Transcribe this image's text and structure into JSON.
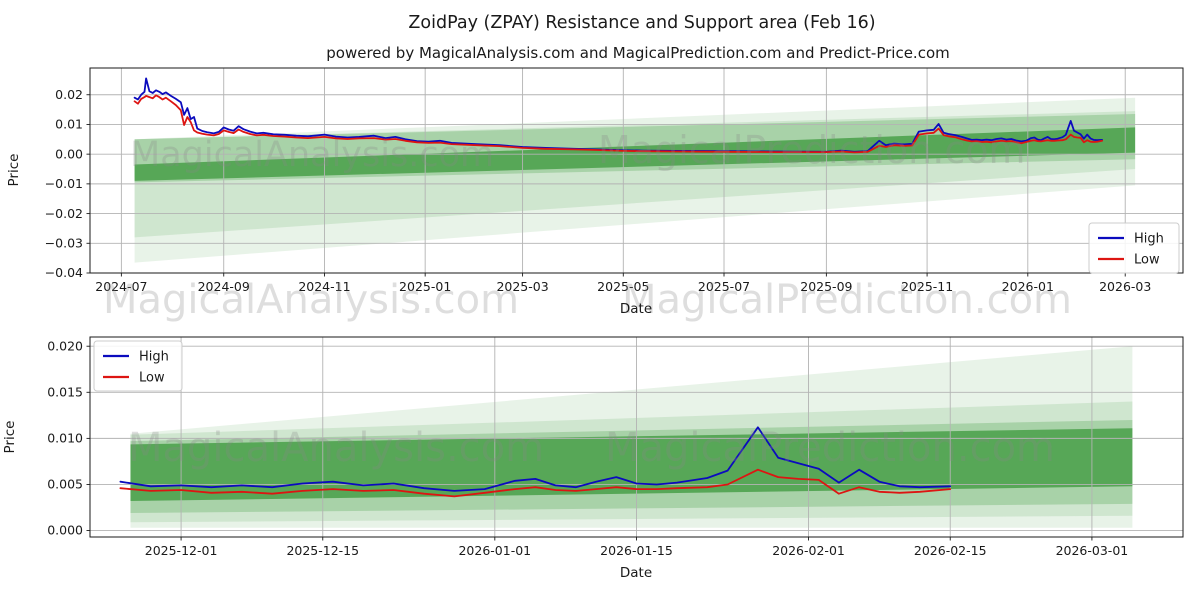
{
  "figure": {
    "title": "ZoidPay (ZPAY) Resistance and Support area (Feb 16)",
    "subtitle": "powered by MagicalAnalysis.com and MagicalPrediction.com and Predict-Price.com",
    "colors": {
      "high_line": "#0b0bbe",
      "low_line": "#dd1512",
      "band_green": "#228b22",
      "grid": "#b3b3b3",
      "spine": "#1a1a1a",
      "watermark": "#8a8a8a"
    }
  },
  "watermarks": [
    {
      "text": "MagicalAnalysis.com",
      "region": "top-chart-left"
    },
    {
      "text": "MagicalPrediction.com",
      "region": "top-chart-right"
    },
    {
      "text": "MagicalAnalysis.com",
      "region": "between-charts-left"
    },
    {
      "text": "MagicalPrediction.com",
      "region": "between-charts-right"
    },
    {
      "text": "MagicalAnalysis.com",
      "region": "bottom-chart-left"
    },
    {
      "text": "MagicalPrediction.com",
      "region": "bottom-chart-right"
    }
  ],
  "chart_data": [
    {
      "type": "line",
      "name": "full-history",
      "xlabel": "Date",
      "ylabel": "Price",
      "xlim": [
        "2024-06-12",
        "2026-04-05"
      ],
      "ylim": [
        -0.04,
        0.029
      ],
      "grid": true,
      "legend": {
        "position": "lower right",
        "entries": [
          {
            "label": "High",
            "color_key": "high_line"
          },
          {
            "label": "Low",
            "color_key": "low_line"
          }
        ]
      },
      "x_ticks": [
        {
          "label": "2024-07",
          "date": "2024-07-01"
        },
        {
          "label": "2024-09",
          "date": "2024-09-01"
        },
        {
          "label": "2024-11",
          "date": "2024-11-01"
        },
        {
          "label": "2025-01",
          "date": "2025-01-01"
        },
        {
          "label": "2025-03",
          "date": "2025-03-01"
        },
        {
          "label": "2025-05",
          "date": "2025-05-01"
        },
        {
          "label": "2025-07",
          "date": "2025-07-01"
        },
        {
          "label": "2025-09",
          "date": "2025-09-01"
        },
        {
          "label": "2025-11",
          "date": "2025-11-01"
        },
        {
          "label": "2026-01",
          "date": "2026-01-01"
        },
        {
          "label": "2026-03",
          "date": "2026-03-01"
        }
      ],
      "y_ticks": [
        {
          "label": "0.02",
          "value": 0.02
        },
        {
          "label": "0.01",
          "value": 0.01
        },
        {
          "label": "0.00",
          "value": 0.0
        },
        {
          "label": "−0.01",
          "value": -0.01
        },
        {
          "label": "−0.02",
          "value": -0.02
        },
        {
          "label": "−0.03",
          "value": -0.03
        },
        {
          "label": "−0.04",
          "value": -0.04
        }
      ],
      "bands": [
        {
          "start": "2024-07-09",
          "end": "2026-03-07",
          "top": [
            0.005,
            0.019
          ],
          "bottom": [
            -0.0365,
            -0.0105
          ],
          "opacity": 0.1
        },
        {
          "start": "2024-07-09",
          "end": "2026-03-07",
          "top": [
            0.005,
            0.0145
          ],
          "bottom": [
            -0.028,
            -0.005
          ],
          "opacity": 0.12
        },
        {
          "start": "2024-07-09",
          "end": "2026-03-07",
          "top": [
            0.005,
            0.0135
          ],
          "bottom": [
            -0.0095,
            -0.0017
          ],
          "opacity": 0.22
        },
        {
          "start": "2024-07-09",
          "end": "2026-03-07",
          "top": [
            -0.0035,
            0.009
          ],
          "bottom": [
            -0.009,
            0.0005
          ],
          "opacity": 0.6
        }
      ],
      "series_labels": [
        "High",
        "Low"
      ],
      "points": [
        [
          "2024-07-09",
          0.019,
          0.0178
        ],
        [
          "2024-07-11",
          0.0184,
          0.017
        ],
        [
          "2024-07-13",
          0.02,
          0.0186
        ],
        [
          "2024-07-15",
          0.021,
          0.0192
        ],
        [
          "2024-07-16",
          0.0255,
          0.0196
        ],
        [
          "2024-07-18",
          0.0212,
          0.0192
        ],
        [
          "2024-07-20",
          0.0206,
          0.0188
        ],
        [
          "2024-07-22",
          0.0215,
          0.0198
        ],
        [
          "2024-07-24",
          0.021,
          0.0192
        ],
        [
          "2024-07-26",
          0.0202,
          0.0184
        ],
        [
          "2024-07-28",
          0.0208,
          0.019
        ],
        [
          "2024-07-31",
          0.0196,
          0.0178
        ],
        [
          "2024-08-03",
          0.0186,
          0.0165
        ],
        [
          "2024-08-06",
          0.0175,
          0.0148
        ],
        [
          "2024-08-08",
          0.0132,
          0.0098
        ],
        [
          "2024-08-10",
          0.0155,
          0.0125
        ],
        [
          "2024-08-12",
          0.0118,
          0.0108
        ],
        [
          "2024-08-14",
          0.0125,
          0.008
        ],
        [
          "2024-08-16",
          0.0086,
          0.0073
        ],
        [
          "2024-08-19",
          0.0078,
          0.0069
        ],
        [
          "2024-08-22",
          0.0074,
          0.0066
        ],
        [
          "2024-08-26",
          0.007,
          0.0063
        ],
        [
          "2024-08-29",
          0.0075,
          0.0068
        ],
        [
          "2024-09-01",
          0.009,
          0.008
        ],
        [
          "2024-09-04",
          0.0083,
          0.0075
        ],
        [
          "2024-09-07",
          0.0079,
          0.0071
        ],
        [
          "2024-09-10",
          0.0094,
          0.0083
        ],
        [
          "2024-09-13",
          0.0084,
          0.0075
        ],
        [
          "2024-09-17",
          0.0076,
          0.0068
        ],
        [
          "2024-09-21",
          0.007,
          0.0063
        ],
        [
          "2024-09-25",
          0.0072,
          0.0065
        ],
        [
          "2024-10-01",
          0.0067,
          0.0061
        ],
        [
          "2024-10-08",
          0.0065,
          0.0059
        ],
        [
          "2024-10-15",
          0.0062,
          0.0056
        ],
        [
          "2024-10-22",
          0.006,
          0.0054
        ],
        [
          "2024-11-01",
          0.0066,
          0.0058
        ],
        [
          "2024-11-08",
          0.0059,
          0.0053
        ],
        [
          "2024-11-15",
          0.0056,
          0.0051
        ],
        [
          "2024-11-22",
          0.0058,
          0.0053
        ],
        [
          "2024-12-01",
          0.0062,
          0.0054
        ],
        [
          "2024-12-08",
          0.0054,
          0.0049
        ],
        [
          "2024-12-14",
          0.0058,
          0.0051
        ],
        [
          "2024-12-20",
          0.005,
          0.0045
        ],
        [
          "2024-12-27",
          0.0044,
          0.004
        ],
        [
          "2025-01-03",
          0.0042,
          0.0038
        ],
        [
          "2025-01-10",
          0.0045,
          0.0039
        ],
        [
          "2025-01-17",
          0.0038,
          0.0034
        ],
        [
          "2025-02-01",
          0.0034,
          0.003
        ],
        [
          "2025-02-15",
          0.003,
          0.0027
        ],
        [
          "2025-03-01",
          0.0024,
          0.0021
        ],
        [
          "2025-03-15",
          0.0021,
          0.0018
        ],
        [
          "2025-04-01",
          0.0018,
          0.0016
        ],
        [
          "2025-04-15",
          0.0016,
          0.0014
        ],
        [
          "2025-05-01",
          0.0013,
          0.0011
        ],
        [
          "2025-05-15",
          0.0012,
          0.001
        ],
        [
          "2025-06-01",
          0.0011,
          0.0009
        ],
        [
          "2025-07-01",
          0.001,
          0.0008
        ],
        [
          "2025-08-01",
          0.0009,
          0.0007
        ],
        [
          "2025-09-01",
          0.0008,
          0.0007
        ],
        [
          "2025-09-10",
          0.0012,
          0.0009
        ],
        [
          "2025-09-18",
          0.0008,
          0.0006
        ],
        [
          "2025-09-26",
          0.001,
          0.0008
        ],
        [
          "2025-10-03",
          0.0045,
          0.0028
        ],
        [
          "2025-10-07",
          0.003,
          0.0024
        ],
        [
          "2025-10-12",
          0.0036,
          0.003
        ],
        [
          "2025-10-18",
          0.0033,
          0.0028
        ],
        [
          "2025-10-23",
          0.0035,
          0.0029
        ],
        [
          "2025-10-27",
          0.0076,
          0.0066
        ],
        [
          "2025-11-01",
          0.008,
          0.007
        ],
        [
          "2025-11-05",
          0.0082,
          0.0072
        ],
        [
          "2025-11-08",
          0.0102,
          0.0086
        ],
        [
          "2025-11-11",
          0.0072,
          0.0064
        ],
        [
          "2025-11-14",
          0.0068,
          0.006
        ],
        [
          "2025-11-18",
          0.0064,
          0.0057
        ],
        [
          "2025-11-22",
          0.0058,
          0.005
        ],
        [
          "2025-11-25",
          0.0053,
          0.0046
        ],
        [
          "2025-11-28",
          0.0048,
          0.0043
        ],
        [
          "2025-12-01",
          0.0049,
          0.0044
        ],
        [
          "2025-12-04",
          0.0047,
          0.0041
        ],
        [
          "2025-12-07",
          0.0049,
          0.0042
        ],
        [
          "2025-12-10",
          0.0047,
          0.004
        ],
        [
          "2025-12-13",
          0.0051,
          0.0043
        ],
        [
          "2025-12-16",
          0.0053,
          0.0045
        ],
        [
          "2025-12-19",
          0.0049,
          0.0043
        ],
        [
          "2025-12-22",
          0.0051,
          0.0044
        ],
        [
          "2025-12-25",
          0.0046,
          0.004
        ],
        [
          "2025-12-28",
          0.0043,
          0.0037
        ],
        [
          "2025-12-31",
          0.0045,
          0.0041
        ],
        [
          "2026-01-03",
          0.0054,
          0.0045
        ],
        [
          "2026-01-05",
          0.0056,
          0.0047
        ],
        [
          "2026-01-07",
          0.0049,
          0.0044
        ],
        [
          "2026-01-09",
          0.0047,
          0.0043
        ],
        [
          "2026-01-11",
          0.0053,
          0.0045
        ],
        [
          "2026-01-13",
          0.0058,
          0.0047
        ],
        [
          "2026-01-15",
          0.0051,
          0.0045
        ],
        [
          "2026-01-17",
          0.005,
          0.0045
        ],
        [
          "2026-01-19",
          0.0052,
          0.0046
        ],
        [
          "2026-01-22",
          0.0057,
          0.0047
        ],
        [
          "2026-01-24",
          0.0065,
          0.005
        ],
        [
          "2026-01-27",
          0.0112,
          0.0066
        ],
        [
          "2026-01-29",
          0.0079,
          0.0058
        ],
        [
          "2026-01-31",
          0.0073,
          0.0056
        ],
        [
          "2026-02-02",
          0.0067,
          0.0055
        ],
        [
          "2026-02-04",
          0.0052,
          0.004
        ],
        [
          "2026-02-06",
          0.0066,
          0.0047
        ],
        [
          "2026-02-08",
          0.0053,
          0.0042
        ],
        [
          "2026-02-10",
          0.0048,
          0.0041
        ],
        [
          "2026-02-12",
          0.0047,
          0.0042
        ],
        [
          "2026-02-15",
          0.0048,
          0.0045
        ]
      ]
    },
    {
      "type": "line",
      "name": "recent-zoom",
      "xlabel": "Date",
      "ylabel": "Price",
      "xlim": [
        "2025-11-22",
        "2026-03-10"
      ],
      "ylim": [
        -0.0007,
        0.021
      ],
      "grid": true,
      "legend": {
        "position": "upper left",
        "entries": [
          {
            "label": "High",
            "color_key": "high_line"
          },
          {
            "label": "Low",
            "color_key": "low_line"
          }
        ]
      },
      "x_ticks": [
        {
          "label": "2025-12-01",
          "date": "2025-12-01"
        },
        {
          "label": "2025-12-15",
          "date": "2025-12-15"
        },
        {
          "label": "2026-01-01",
          "date": "2026-01-01"
        },
        {
          "label": "2026-01-15",
          "date": "2026-01-15"
        },
        {
          "label": "2026-02-01",
          "date": "2026-02-01"
        },
        {
          "label": "2026-02-15",
          "date": "2026-02-15"
        },
        {
          "label": "2026-03-01",
          "date": "2026-03-01"
        }
      ],
      "y_ticks": [
        {
          "label": "0.020",
          "value": 0.02
        },
        {
          "label": "0.015",
          "value": 0.015
        },
        {
          "label": "0.010",
          "value": 0.01
        },
        {
          "label": "0.005",
          "value": 0.005
        },
        {
          "label": "0.000",
          "value": 0.0
        }
      ],
      "bands": [
        {
          "start": "2025-11-26",
          "end": "2026-03-05",
          "top": [
            0.0105,
            0.02
          ],
          "bottom": [
            0.0003,
            0.0003
          ],
          "opacity": 0.1
        },
        {
          "start": "2025-11-26",
          "end": "2026-03-05",
          "top": [
            0.0104,
            0.014
          ],
          "bottom": [
            0.0009,
            0.0016
          ],
          "opacity": 0.12
        },
        {
          "start": "2025-11-26",
          "end": "2026-03-05",
          "top": [
            0.0097,
            0.012
          ],
          "bottom": [
            0.0019,
            0.0029
          ],
          "opacity": 0.22
        },
        {
          "start": "2025-11-26",
          "end": "2026-03-05",
          "top": [
            0.00935,
            0.0111
          ],
          "bottom": [
            0.0032,
            0.0048
          ],
          "opacity": 0.6
        }
      ],
      "series_labels": [
        "High",
        "Low"
      ],
      "points": [
        [
          "2025-11-25",
          0.0053,
          0.0046
        ],
        [
          "2025-11-28",
          0.0048,
          0.0043
        ],
        [
          "2025-12-01",
          0.0049,
          0.0044
        ],
        [
          "2025-12-04",
          0.0047,
          0.0041
        ],
        [
          "2025-12-07",
          0.0049,
          0.0042
        ],
        [
          "2025-12-10",
          0.0047,
          0.004
        ],
        [
          "2025-12-13",
          0.0051,
          0.0043
        ],
        [
          "2025-12-16",
          0.0053,
          0.0045
        ],
        [
          "2025-12-19",
          0.0049,
          0.0043
        ],
        [
          "2025-12-22",
          0.0051,
          0.0044
        ],
        [
          "2025-12-25",
          0.0046,
          0.004
        ],
        [
          "2025-12-28",
          0.0043,
          0.0037
        ],
        [
          "2025-12-31",
          0.0045,
          0.0041
        ],
        [
          "2026-01-03",
          0.0054,
          0.0045
        ],
        [
          "2026-01-05",
          0.0056,
          0.0047
        ],
        [
          "2026-01-07",
          0.0049,
          0.0044
        ],
        [
          "2026-01-09",
          0.0047,
          0.0043
        ],
        [
          "2026-01-11",
          0.0053,
          0.0045
        ],
        [
          "2026-01-13",
          0.0058,
          0.0047
        ],
        [
          "2026-01-15",
          0.0051,
          0.0045
        ],
        [
          "2026-01-17",
          0.005,
          0.0045
        ],
        [
          "2026-01-19",
          0.0052,
          0.0046
        ],
        [
          "2026-01-22",
          0.0057,
          0.0047
        ],
        [
          "2026-01-24",
          0.0065,
          0.005
        ],
        [
          "2026-01-27",
          0.0112,
          0.0066
        ],
        [
          "2026-01-29",
          0.0079,
          0.0058
        ],
        [
          "2026-01-31",
          0.0073,
          0.0056
        ],
        [
          "2026-02-02",
          0.0067,
          0.0055
        ],
        [
          "2026-02-04",
          0.0052,
          0.004
        ],
        [
          "2026-02-06",
          0.0066,
          0.0047
        ],
        [
          "2026-02-08",
          0.0053,
          0.0042
        ],
        [
          "2026-02-10",
          0.0048,
          0.0041
        ],
        [
          "2026-02-12",
          0.0047,
          0.0042
        ],
        [
          "2026-02-15",
          0.0048,
          0.0045
        ]
      ]
    }
  ]
}
